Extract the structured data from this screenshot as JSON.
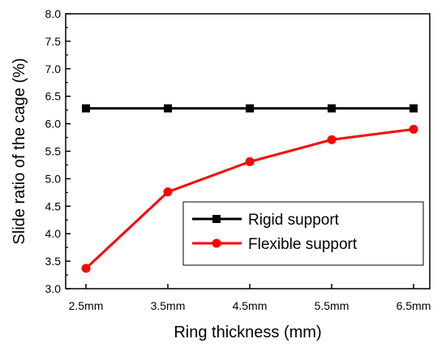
{
  "chart_data": {
    "type": "line",
    "title": "",
    "xlabel": "Ring thickness (mm)",
    "ylabel": "Slide ratio of the cage (%)",
    "categories": [
      "2.5mm",
      "3.5mm",
      "4.5mm",
      "5.5mm",
      "6.5mm"
    ],
    "ylim": [
      3.0,
      8.0
    ],
    "yticks": [
      "3.0",
      "3.5",
      "4.0",
      "4.5",
      "5.0",
      "5.5",
      "6.0",
      "6.5",
      "7.0",
      "7.5",
      "8.0"
    ],
    "grid": false,
    "legend_position": "lower-right",
    "series": [
      {
        "name": "Rigid support",
        "values": [
          6.28,
          6.28,
          6.28,
          6.28,
          6.28
        ],
        "color": "#000000",
        "marker": "square"
      },
      {
        "name": "Flexible support",
        "values": [
          3.37,
          4.76,
          5.31,
          5.71,
          5.9
        ],
        "color": "#ff0000",
        "marker": "circle"
      }
    ]
  }
}
